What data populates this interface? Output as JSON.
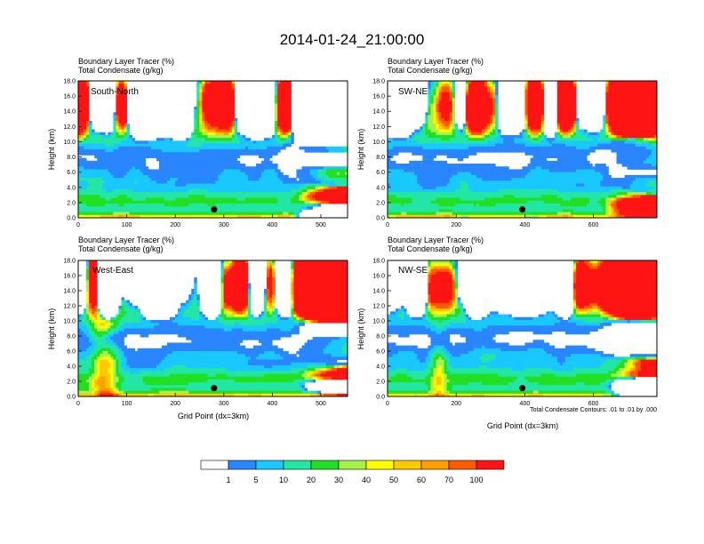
{
  "figure": {
    "title": "2014-01-24_21:00:00",
    "contour_note": "Total Condensate Contours: .01 to .01 by .000",
    "x_axis_label": "Grid Point (dx=3km)"
  },
  "chart_data": [
    {
      "type": "heatmap",
      "panel_label": "South-North",
      "header": [
        "Boundary Layer Tracer   (%)",
        "Total Condensate  (g/kg)"
      ],
      "ylabel": "Height (km)",
      "xlabel": "",
      "xlim": [
        0,
        555
      ],
      "ylim": [
        0,
        18
      ],
      "x_ticks": [
        "0",
        "100",
        "200",
        "300",
        "400",
        "500"
      ],
      "y_ticks": [
        "0.0",
        "2.0",
        "4.0",
        "6.0",
        "8.0",
        "10.0",
        "12.0",
        "14.0",
        "16.0",
        "18.0"
      ],
      "marker": {
        "x": 280,
        "y": 1.1
      }
    },
    {
      "type": "heatmap",
      "panel_label": "SW-NE",
      "header": [
        "Boundary Layer Tracer   (%)",
        "Total Condensate  (g/kg)"
      ],
      "ylabel": "Height (km)",
      "xlabel": "",
      "xlim": [
        0,
        785
      ],
      "ylim": [
        0,
        18
      ],
      "x_ticks": [
        "0",
        "200",
        "400",
        "600"
      ],
      "y_ticks": [
        "0.0",
        "2.0",
        "4.0",
        "6.0",
        "8.0",
        "10.0",
        "12.0",
        "14.0",
        "16.0",
        "18.0"
      ],
      "marker": {
        "x": 393,
        "y": 1.1
      }
    },
    {
      "type": "heatmap",
      "panel_label": "West-East",
      "header": [
        "Boundary Layer Tracer   (%)",
        "Total Condensate  (g/kg)"
      ],
      "ylabel": "Height (km)",
      "xlabel": "Grid Point (dx=3km)",
      "xlim": [
        0,
        555
      ],
      "ylim": [
        0,
        18
      ],
      "x_ticks": [
        "0",
        "100",
        "200",
        "300",
        "400",
        "500"
      ],
      "y_ticks": [
        "0.0",
        "2.0",
        "4.0",
        "6.0",
        "8.0",
        "10.0",
        "12.0",
        "14.0",
        "16.0",
        "18.0"
      ],
      "marker": {
        "x": 280,
        "y": 1.1
      }
    },
    {
      "type": "heatmap",
      "panel_label": "NW-SE",
      "header": [
        "Boundary Layer Tracer   (%)",
        "Total Condensate  (g/kg)"
      ],
      "ylabel": "Height (km)",
      "xlabel": "Grid Point (dx=3km)",
      "xlim": [
        0,
        785
      ],
      "ylim": [
        0,
        18
      ],
      "x_ticks": [
        "0",
        "200",
        "400",
        "600"
      ],
      "y_ticks": [
        "0.0",
        "2.0",
        "4.0",
        "6.0",
        "8.0",
        "10.0",
        "12.0",
        "14.0",
        "16.0",
        "18.0"
      ],
      "marker": {
        "x": 393,
        "y": 1.1
      }
    }
  ],
  "colorbar": {
    "levels": [
      "1",
      "5",
      "10",
      "20",
      "30",
      "40",
      "50",
      "60",
      "70",
      "100"
    ],
    "colors": [
      "#ffffff",
      "#2a86ff",
      "#19c8ff",
      "#23e6a5",
      "#22e021",
      "#a6f24a",
      "#ffff00",
      "#ffc800",
      "#ff9f00",
      "#ff5a00",
      "#ff1414"
    ]
  }
}
